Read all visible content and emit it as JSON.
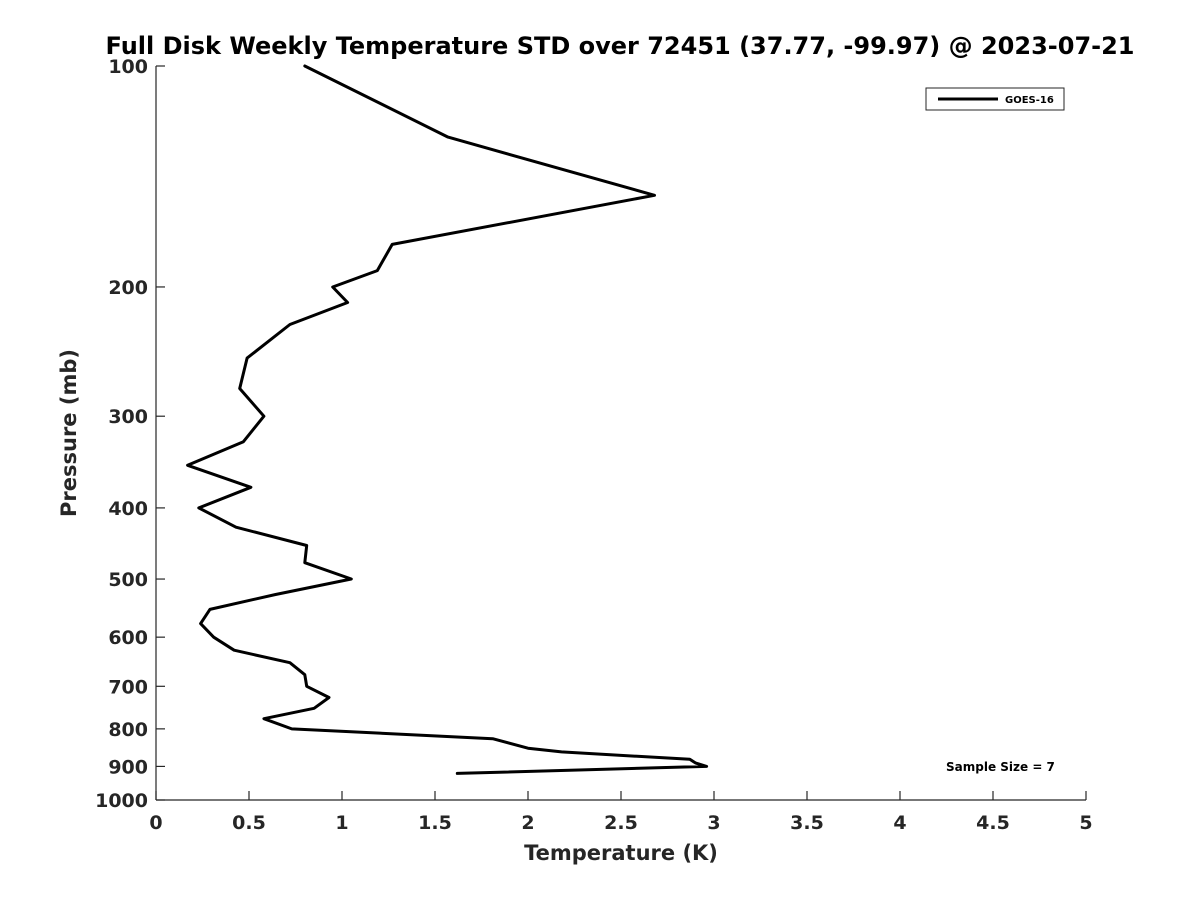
{
  "chart_data": {
    "type": "line",
    "title": "Full Disk Weekly Temperature STD over 72451 (37.77, -99.97) @ 2023-07-21",
    "xlabel": "Temperature (K)",
    "ylabel": "Pressure (mb)",
    "xlim": [
      0,
      5
    ],
    "ylim": [
      100,
      1000
    ],
    "y_scale": "log",
    "y_reversed": true,
    "x_ticks": [
      "0",
      "0.5",
      "1",
      "1.5",
      "2",
      "2.5",
      "3",
      "3.5",
      "4",
      "4.5",
      "5"
    ],
    "y_ticks": [
      "100",
      "200",
      "300",
      "400",
      "500",
      "600",
      "700",
      "800",
      "900",
      "1000"
    ],
    "grid": false,
    "legend": {
      "position": "top-right",
      "entries": [
        "GOES-16"
      ]
    },
    "annotation": "Sample Size = 7",
    "series": [
      {
        "name": "GOES-16",
        "color": "#000000",
        "points": [
          [
            0.8,
            100
          ],
          [
            1.57,
            125
          ],
          [
            2.68,
            150
          ],
          [
            1.27,
            175
          ],
          [
            1.19,
            190
          ],
          [
            0.95,
            200
          ],
          [
            1.03,
            210
          ],
          [
            0.72,
            225
          ],
          [
            0.49,
            250
          ],
          [
            0.45,
            275
          ],
          [
            0.58,
            300
          ],
          [
            0.47,
            325
          ],
          [
            0.17,
            350
          ],
          [
            0.51,
            375
          ],
          [
            0.23,
            400
          ],
          [
            0.43,
            425
          ],
          [
            0.81,
            450
          ],
          [
            0.8,
            475
          ],
          [
            1.05,
            500
          ],
          [
            0.64,
            525
          ],
          [
            0.29,
            550
          ],
          [
            0.24,
            575
          ],
          [
            0.31,
            600
          ],
          [
            0.42,
            625
          ],
          [
            0.72,
            650
          ],
          [
            0.8,
            675
          ],
          [
            0.81,
            700
          ],
          [
            0.93,
            725
          ],
          [
            0.85,
            750
          ],
          [
            0.58,
            775
          ],
          [
            0.73,
            800
          ],
          [
            1.81,
            825
          ],
          [
            2.0,
            850
          ],
          [
            2.18,
            860
          ],
          [
            2.87,
            880
          ],
          [
            2.9,
            890
          ],
          [
            2.96,
            900
          ],
          [
            1.62,
            920
          ]
        ]
      }
    ]
  }
}
